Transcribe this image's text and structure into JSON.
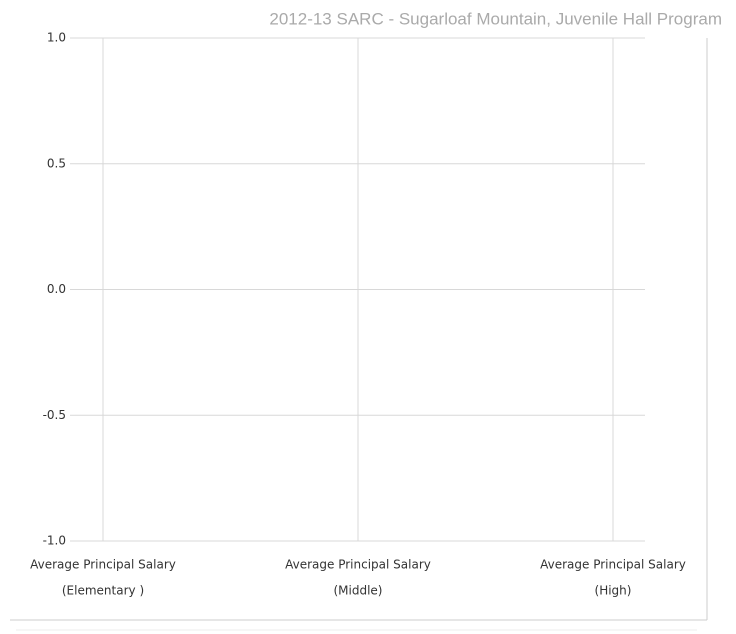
{
  "chart_data": {
    "type": "bar",
    "title": "2012-13 SARC - Sugarloaf Mountain, Juvenile Hall Program",
    "categories": [
      [
        "Average Principal Salary",
        "(Elementary )"
      ],
      [
        "Average Principal Salary",
        "(Middle)"
      ],
      [
        "Average Principal Salary",
        "(High)"
      ]
    ],
    "values": [
      null,
      null,
      null
    ],
    "color": "#4472c4",
    "ylim": [
      -1,
      1
    ],
    "yticks": [
      {
        "value": 1,
        "label": "1.0"
      },
      {
        "value": 0.5,
        "label": "0.5"
      },
      {
        "value": 0,
        "label": "0.0"
      },
      {
        "value": -0.5,
        "label": "-0.5"
      },
      {
        "value": -1,
        "label": "-1.0"
      }
    ],
    "grid": true
  }
}
